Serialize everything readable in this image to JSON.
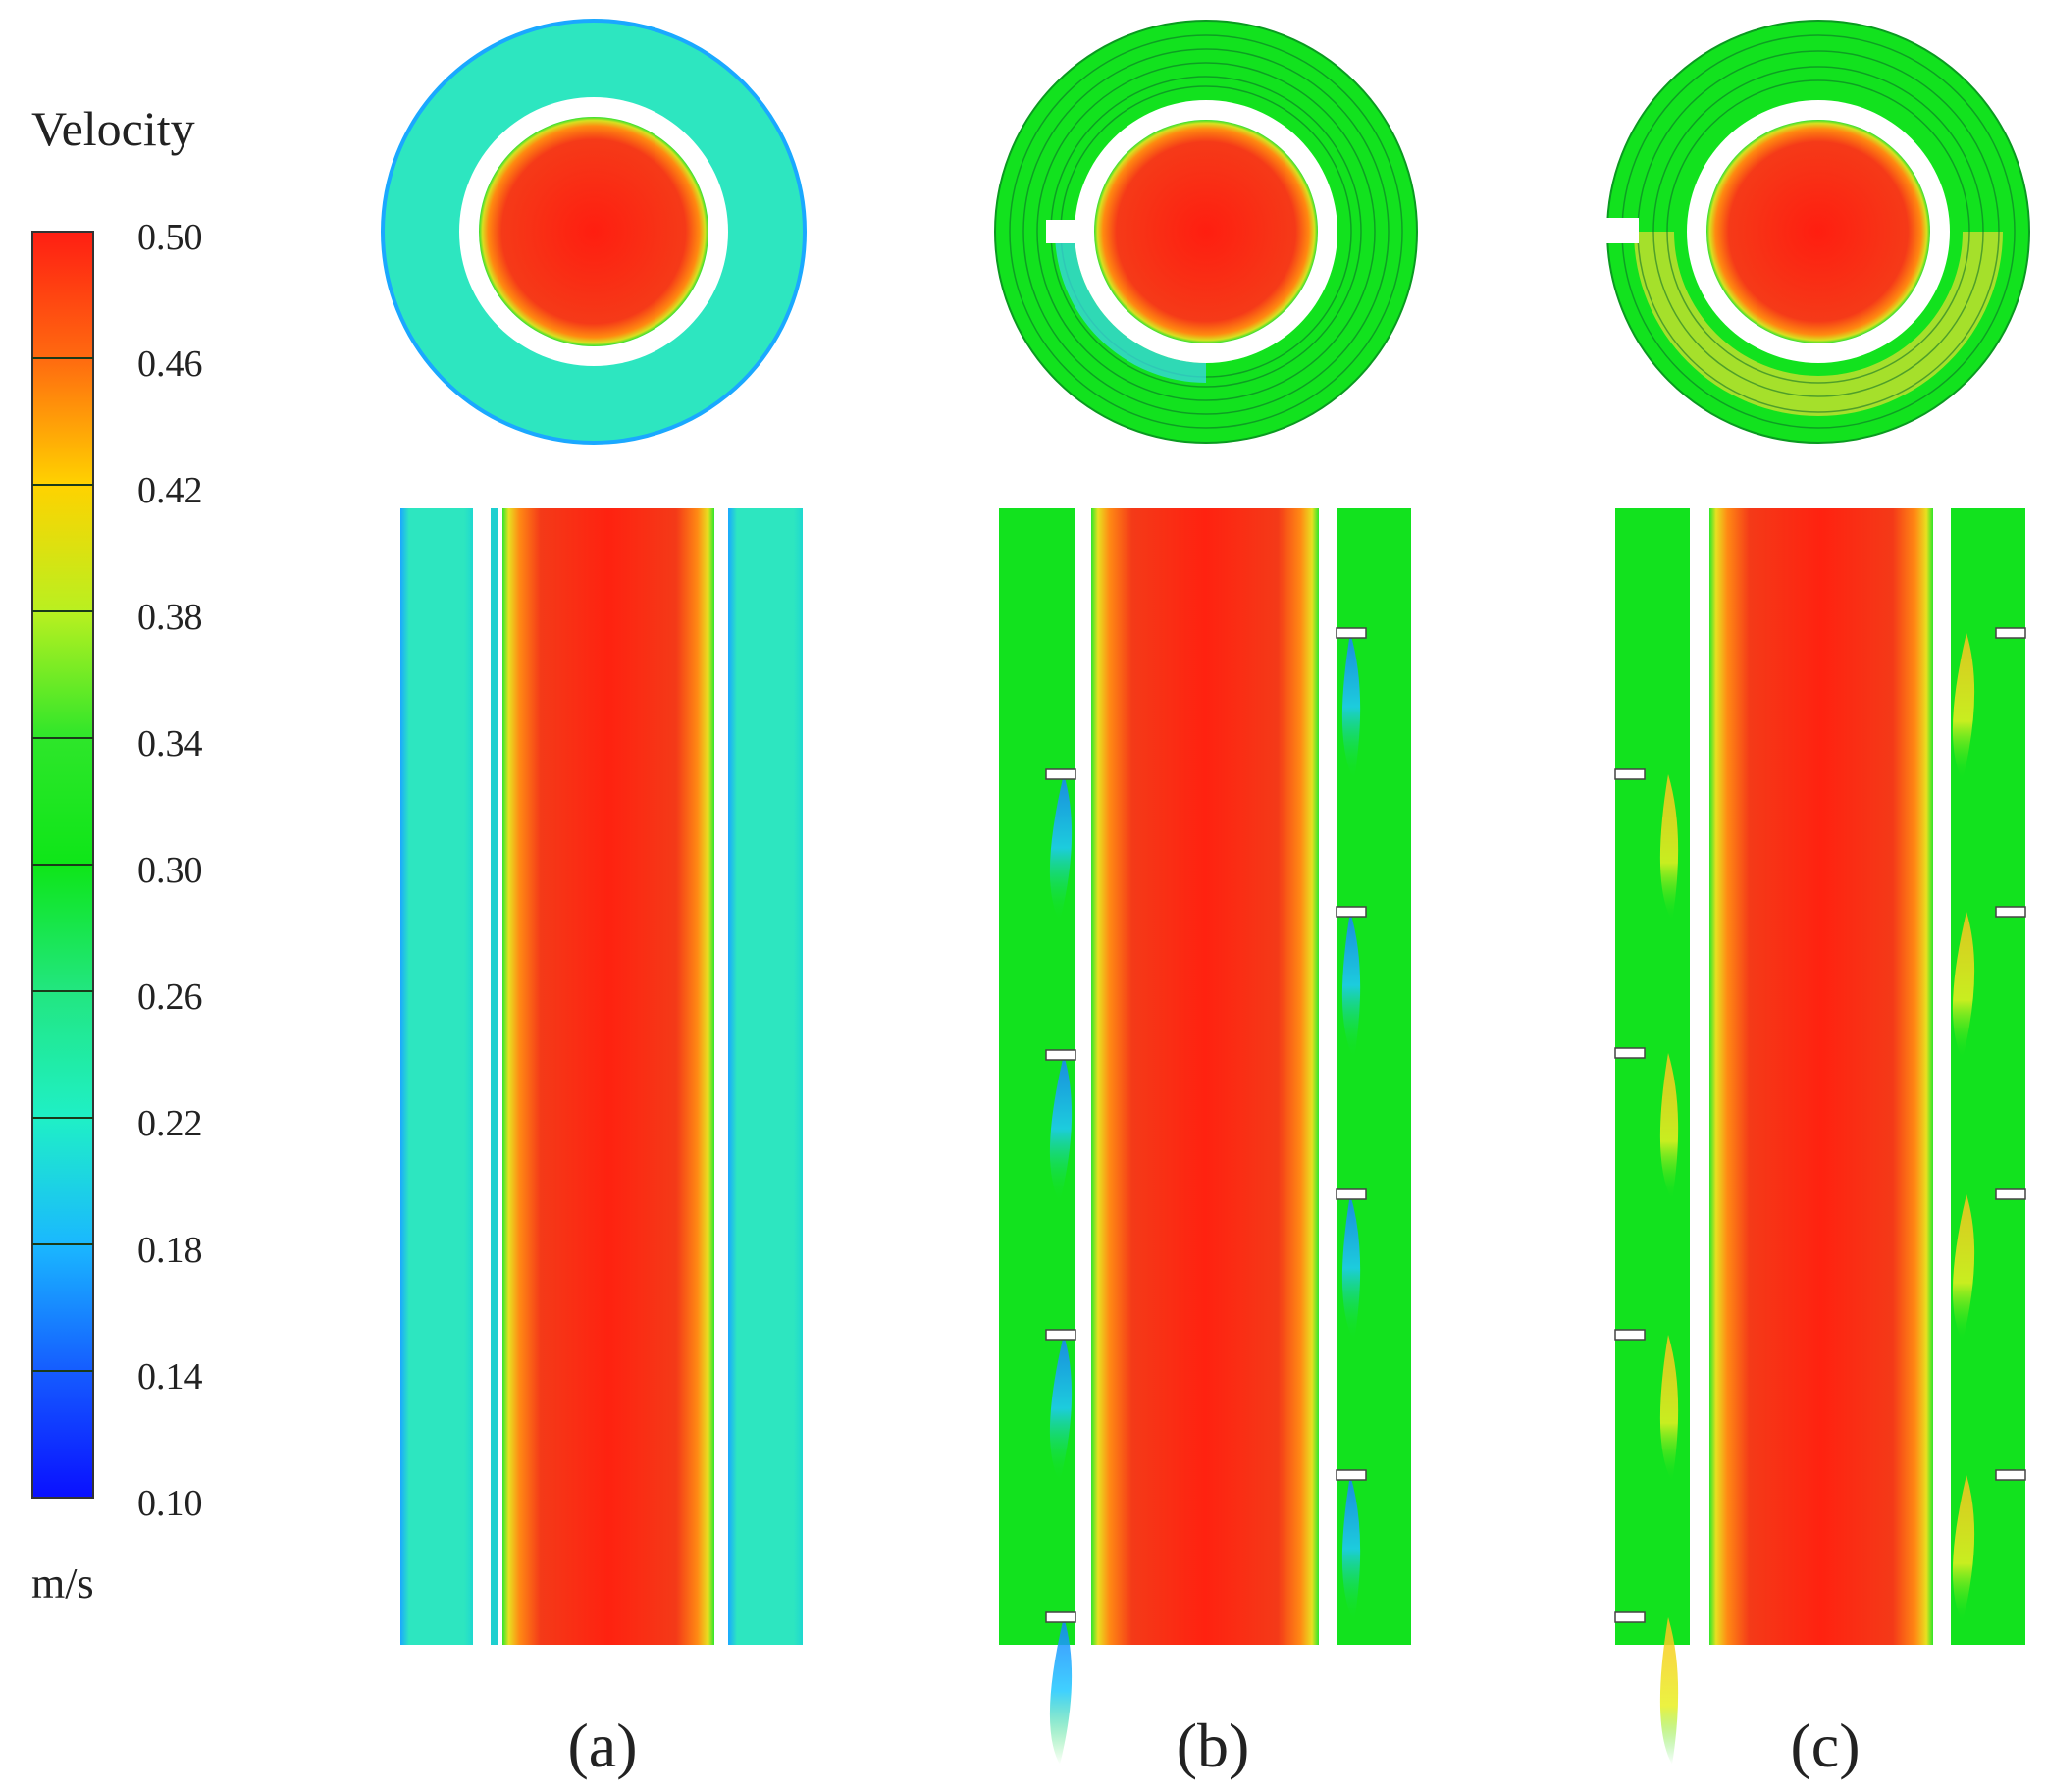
{
  "legend": {
    "title": "Velocity",
    "unit": "m/s",
    "ticks": [
      "0.50",
      "0.46",
      "0.42",
      "0.38",
      "0.34",
      "0.30",
      "0.26",
      "0.22",
      "0.18",
      "0.14",
      "0.10"
    ],
    "colors": {
      "v050": "#ff1e12",
      "v046": "#ff6a10",
      "v042": "#ffd200",
      "v038": "#b9f020",
      "v034": "#2ee62a",
      "v030": "#0ee618",
      "v026": "#22e680",
      "v022": "#1ff0c6",
      "v018": "#1ab8ff",
      "v014": "#155cff",
      "v010": "#0a10ff"
    }
  },
  "panels": [
    {
      "label": "(a)",
      "letter": "a",
      "fin": "none"
    },
    {
      "label": "(b)",
      "letter": "b",
      "fin": "rings"
    },
    {
      "label": "(c)",
      "letter": "c",
      "fin": "helical"
    }
  ],
  "colors": {
    "core": "#f4321a",
    "annulus_a": "#2de6c0",
    "annulus_bc": "#12e21e",
    "wall": "#ffffff"
  }
}
